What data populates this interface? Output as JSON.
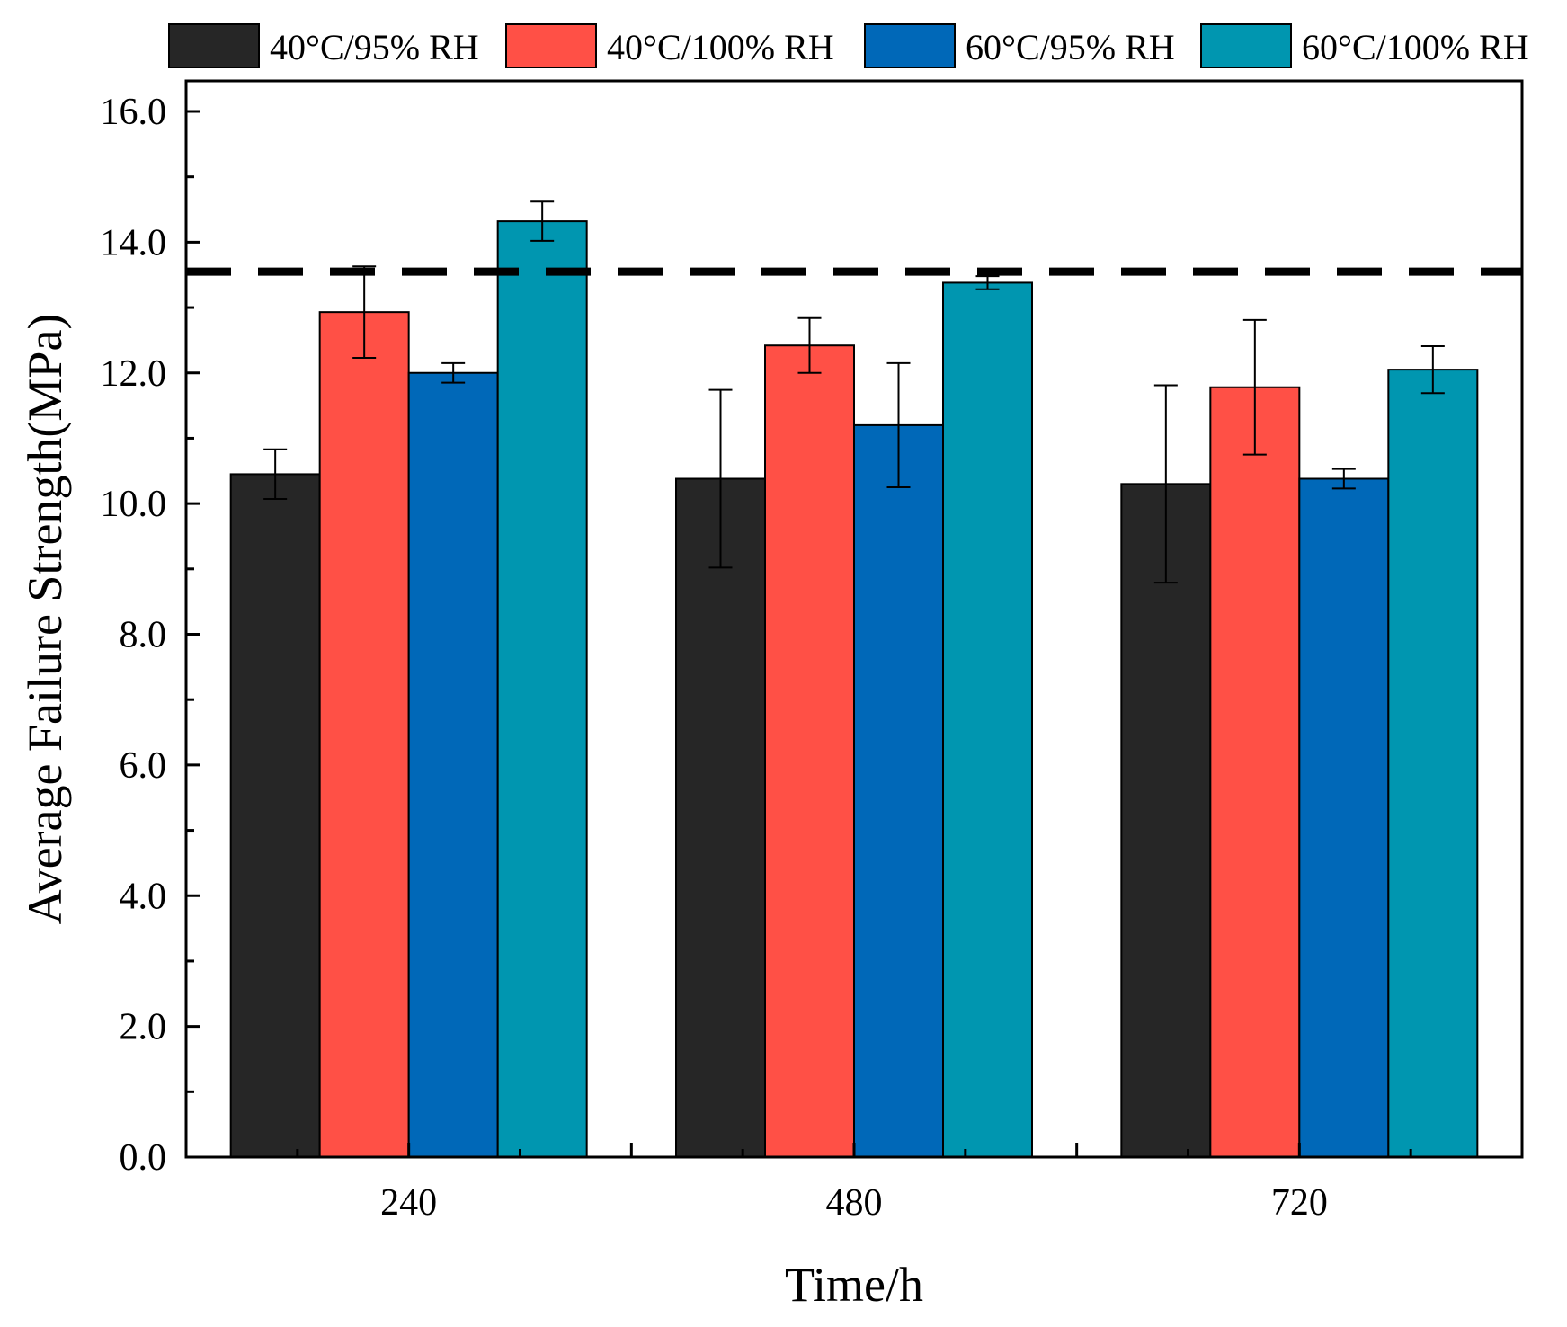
{
  "chart_data": {
    "type": "bar",
    "categories": [
      "240",
      "480",
      "720"
    ],
    "xlabel": "Time/h",
    "ylabel": "Average Failure Strength(MPa)",
    "ylim": [
      0,
      16
    ],
    "yticks": [
      "0.0",
      "2.0",
      "4.0",
      "6.0",
      "8.0",
      "10.0",
      "12.0",
      "14.0",
      "16.0"
    ],
    "grid": false,
    "legend_position": "top",
    "reference_line": {
      "value": 13.55,
      "style": "dashed",
      "color": "#000000"
    },
    "series": [
      {
        "name": "40°C/95% RH",
        "color": "#262626",
        "values": [
          10.45,
          10.38,
          10.3
        ],
        "errors": [
          0.38,
          1.36,
          1.51
        ]
      },
      {
        "name": "40°C/100% RH",
        "color": "#ff5046",
        "values": [
          12.93,
          12.42,
          11.78
        ],
        "errors": [
          0.7,
          0.42,
          1.03
        ]
      },
      {
        "name": "60°C/95% RH",
        "color": "#0068b8",
        "values": [
          12.0,
          11.2,
          10.38
        ],
        "errors": [
          0.15,
          0.95,
          0.15
        ]
      },
      {
        "name": "60°C/100% RH",
        "color": "#0096b0",
        "values": [
          14.32,
          13.38,
          12.05
        ],
        "errors": [
          0.3,
          0.1,
          0.36
        ]
      }
    ]
  }
}
